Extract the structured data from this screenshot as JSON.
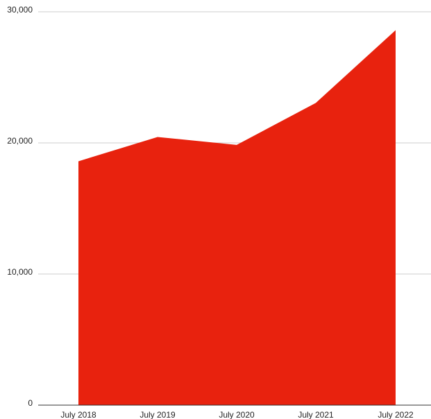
{
  "chart_data": {
    "type": "area",
    "title": "",
    "xlabel": "",
    "ylabel": "",
    "categories": [
      "July 2018",
      "July 2019",
      "July 2020",
      "July 2021",
      "July 2022"
    ],
    "series": [
      {
        "values": [
          18600,
          20450,
          19850,
          23050,
          28600
        ],
        "color": "#e8220e"
      }
    ],
    "ylim": [
      0,
      30000
    ],
    "yticks": [
      0,
      10000,
      20000,
      30000
    ],
    "ytick_labels": [
      "0",
      "10,000",
      "20,000",
      "30,000"
    ],
    "grid": true,
    "legend": "none"
  }
}
